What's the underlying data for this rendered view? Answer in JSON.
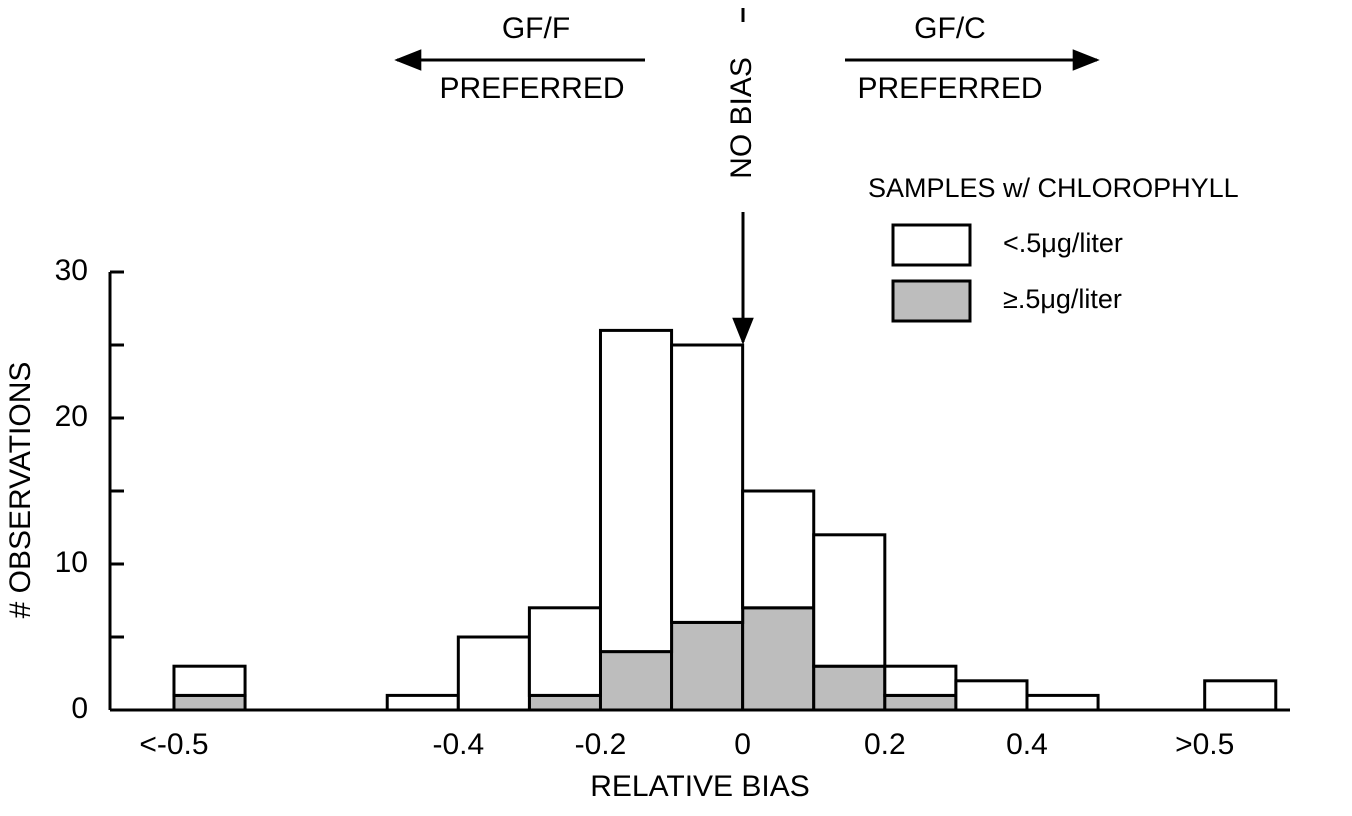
{
  "chart_data": {
    "type": "histogram",
    "xlabel": "RELATIVE BIAS",
    "ylabel": "# OBSERVATIONS",
    "bins": [
      -0.8,
      -0.7,
      -0.5,
      -0.4,
      -0.3,
      -0.2,
      -0.1,
      0,
      0.1,
      0.2,
      0.3,
      0.4,
      0.5,
      0.65,
      0.75
    ],
    "series": [
      {
        "name": "<.5μg/liter",
        "color": "#ffffff",
        "values": [
          2,
          0,
          1,
          5,
          6,
          22,
          19,
          8,
          9,
          2,
          2,
          1,
          0,
          2
        ]
      },
      {
        "name": "≥.5μg/liter",
        "color": "#bdbdbd",
        "values": [
          1,
          0,
          0,
          0,
          1,
          4,
          6,
          7,
          3,
          1,
          0,
          0,
          0,
          0
        ]
      }
    ],
    "stacked": true,
    "xlim": [
      -0.89,
      0.77
    ],
    "xticks": [
      {
        "value": -0.8,
        "label": "<-0.5"
      },
      -0.4,
      -0.2,
      0,
      0.2,
      0.4,
      {
        "value": 0.65,
        "label": ">0.5"
      }
    ],
    "ylim": [
      0,
      30
    ],
    "yticks": [
      0,
      10,
      20,
      30
    ],
    "yminorticks": [
      5,
      15,
      25
    ],
    "legend": {
      "title": "SAMPLES w/ CHLOROPHYLL",
      "position": "upper right"
    },
    "annotations": [
      {
        "lines": [
          "GF/F",
          "PREFERRED"
        ],
        "arrow": "left"
      },
      {
        "lines": [
          "NO BIAS"
        ],
        "arrow": "down"
      },
      {
        "lines": [
          "GF/C",
          "PREFERRED"
        ],
        "arrow": "right"
      }
    ]
  }
}
